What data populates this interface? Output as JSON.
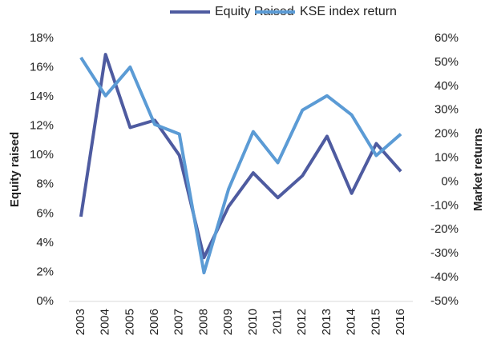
{
  "chart_data": {
    "type": "line",
    "categories": [
      "2003",
      "2004",
      "2005",
      "2006",
      "2007",
      "2008",
      "2009",
      "2010",
      "2011",
      "2012",
      "2013",
      "2014",
      "2015",
      "2016"
    ],
    "series": [
      {
        "name": "Equity Raised",
        "color": "#4e5ba0",
        "values": [
          5.8,
          16.9,
          11.9,
          12.4,
          10.0,
          3.0,
          6.5,
          8.8,
          7.1,
          8.6,
          11.3,
          7.4,
          10.8,
          8.9
        ]
      },
      {
        "name": "KSE index return",
        "color": "#5b9bd5",
        "axis": "y2",
        "values": [
          52,
          36,
          48,
          24,
          20,
          -38,
          -3,
          21,
          8,
          30,
          36,
          28,
          11,
          20
        ]
      }
    ],
    "ylabel": "Equity raised",
    "y2label": "Market returns",
    "ylim": [
      0,
      18
    ],
    "yticks": [
      {
        "value": 0,
        "label": "0%"
      },
      {
        "value": 2,
        "label": "2%"
      },
      {
        "value": 4,
        "label": "4%"
      },
      {
        "value": 6,
        "label": "6%"
      },
      {
        "value": 8,
        "label": "8%"
      },
      {
        "value": 10,
        "label": "10%"
      },
      {
        "value": 12,
        "label": "12%"
      },
      {
        "value": 14,
        "label": "14%"
      },
      {
        "value": 16,
        "label": "16%"
      },
      {
        "value": 18,
        "label": "18%"
      }
    ],
    "y2lim": [
      -50,
      60
    ],
    "y2ticks": [
      {
        "value": -50,
        "label": "-50%"
      },
      {
        "value": -40,
        "label": "-40%"
      },
      {
        "value": -30,
        "label": "-30%"
      },
      {
        "value": -20,
        "label": "-20%"
      },
      {
        "value": -10,
        "label": "-10%"
      },
      {
        "value": 0,
        "label": "0%"
      },
      {
        "value": 10,
        "label": "10%"
      },
      {
        "value": 20,
        "label": "20%"
      },
      {
        "value": 30,
        "label": "30%"
      },
      {
        "value": 40,
        "label": "40%"
      },
      {
        "value": 50,
        "label": "50%"
      },
      {
        "value": 60,
        "label": "60%"
      }
    ],
    "legend": "top",
    "grid": false
  }
}
